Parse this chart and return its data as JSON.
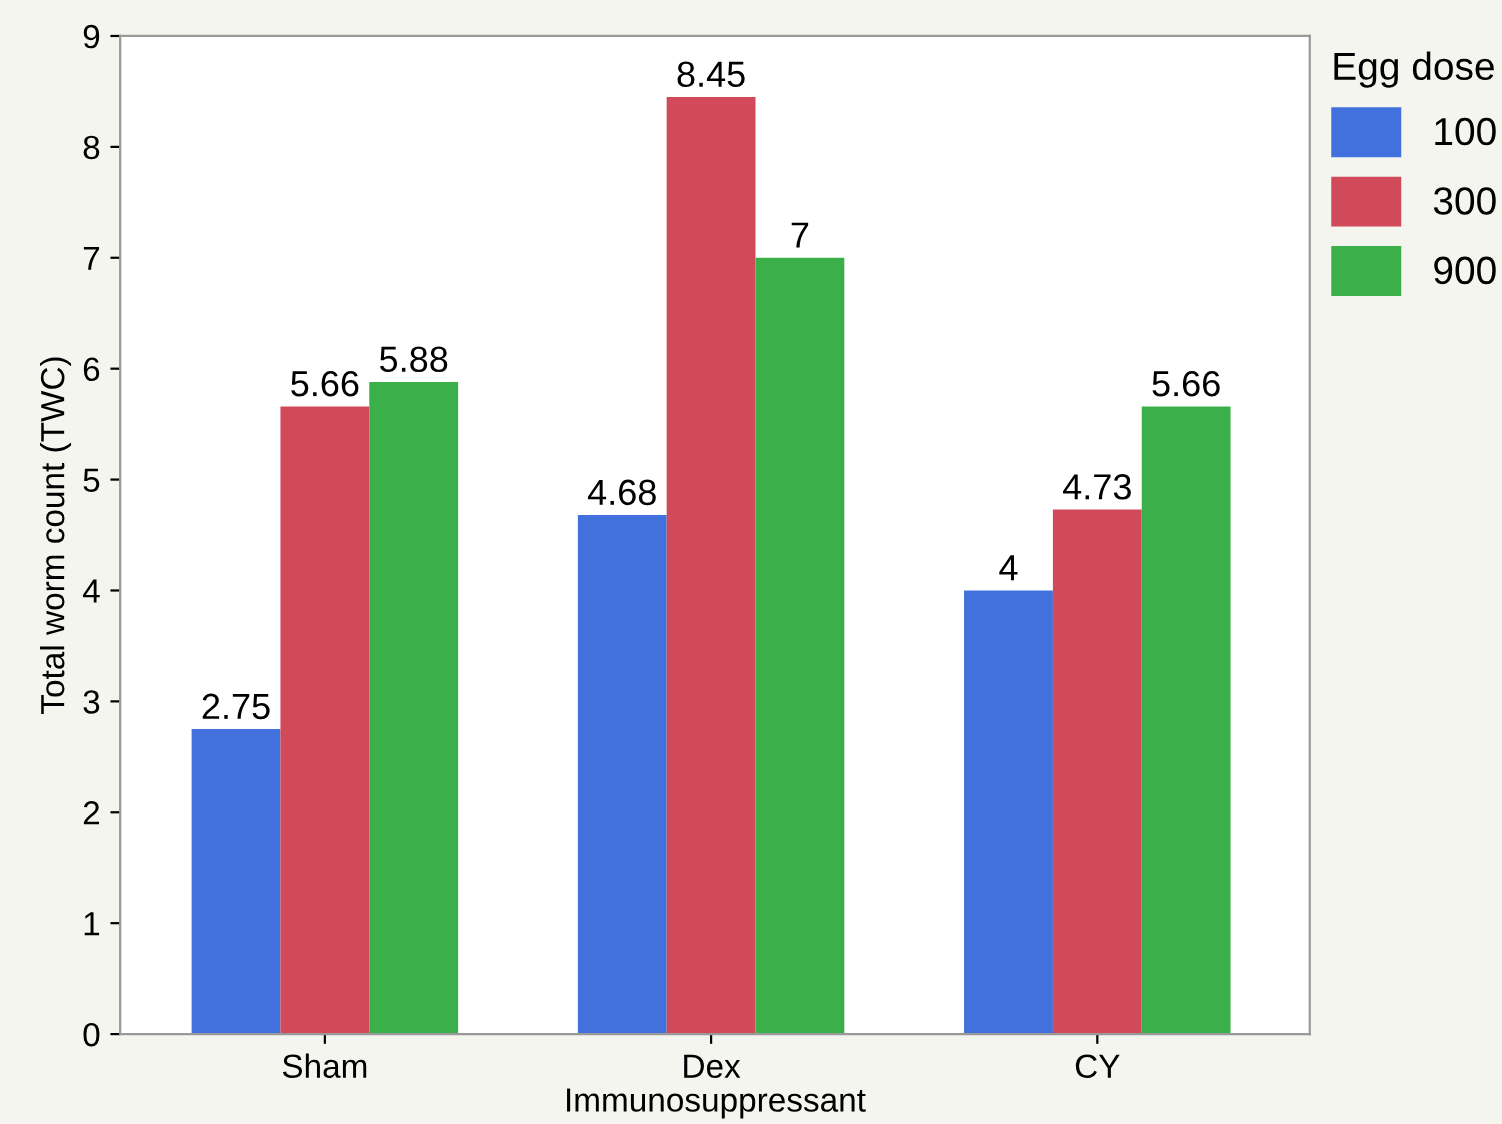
{
  "chart_data": {
    "type": "bar",
    "xlabel": "Immunosuppressant",
    "ylabel": "Total worm count (TWC)",
    "legend_title": "Egg dose",
    "categories": [
      "Sham",
      "Dex",
      "CY"
    ],
    "series": [
      {
        "name": "100",
        "color": "#4270dd",
        "values": [
          2.75,
          4.68,
          4
        ]
      },
      {
        "name": "300",
        "color": "#d04a5a",
        "values": [
          5.66,
          8.45,
          4.73
        ]
      },
      {
        "name": "900",
        "color": "#3bb04a",
        "values": [
          5.88,
          7,
          5.66
        ]
      }
    ],
    "ylim": [
      0,
      9
    ],
    "yticks": [
      0,
      1,
      2,
      3,
      4,
      5,
      6,
      7,
      8,
      9
    ],
    "grid": false,
    "legend": "right",
    "data_labels": true
  }
}
